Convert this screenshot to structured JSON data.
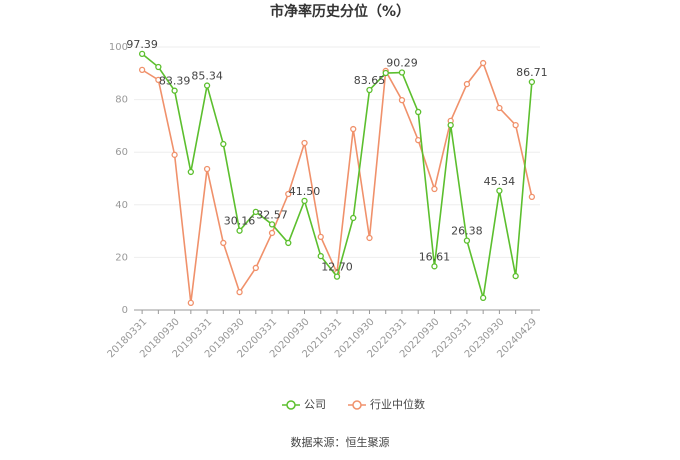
{
  "chart_data": {
    "type": "line",
    "title": "市净率历史分位（%）",
    "categories": [
      "20180331",
      null,
      "20180930",
      null,
      "20190331",
      null,
      "20190930",
      null,
      "20200331",
      null,
      "20200930",
      null,
      "20210331",
      null,
      "20210930",
      null,
      "20220331",
      null,
      "20220930",
      null,
      "20230331",
      null,
      "20230930",
      null,
      "20240429"
    ],
    "series": [
      {
        "name": "公司",
        "color": "#5cbf2e",
        "values": [
          97.39,
          92.4,
          83.39,
          52.5,
          85.34,
          63.1,
          30.16,
          37.3,
          32.57,
          25.5,
          41.5,
          20.5,
          12.7,
          35.0,
          83.65,
          90.1,
          90.29,
          75.3,
          16.61,
          70.3,
          26.38,
          4.6,
          45.34,
          12.9,
          86.71
        ],
        "value_labels": [
          "97.39",
          null,
          "83.39",
          null,
          "85.34",
          null,
          "30.16",
          null,
          "32.57",
          null,
          "41.50",
          null,
          "12.70",
          null,
          "83.65",
          null,
          "90.29",
          null,
          "16.61",
          null,
          "26.38",
          null,
          "45.34",
          null,
          "86.71"
        ]
      },
      {
        "name": "行业中位数",
        "color": "#f0916b",
        "values": [
          91.3,
          87.5,
          59.0,
          2.7,
          53.6,
          25.5,
          6.8,
          16.0,
          29.3,
          44.1,
          63.5,
          27.8,
          14.1,
          68.8,
          27.4,
          90.9,
          79.8,
          64.6,
          46.0,
          71.9,
          85.9,
          93.9,
          76.8,
          70.3,
          43.0
        ]
      }
    ],
    "ylim": [
      0,
      100
    ],
    "yticks": [
      0,
      20,
      40,
      60,
      80,
      100
    ],
    "grid": true,
    "source": "数据来源：恒生聚源"
  }
}
